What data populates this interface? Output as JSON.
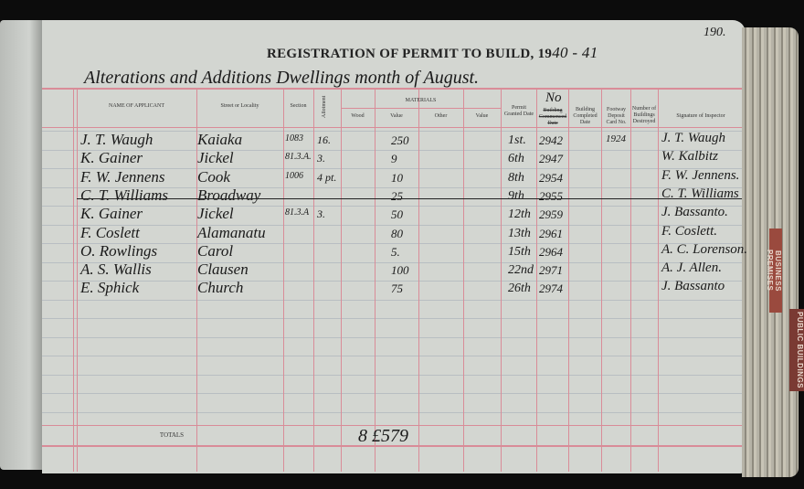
{
  "page_number": "190.",
  "title": "REGISTRATION OF PERMIT TO BUILD, 19",
  "title_year_handwritten": "40 - 41",
  "subtitle": "Alterations and Additions Dwellings month of August.",
  "headers": {
    "name": "NAME OF APPLICANT",
    "street": "Street or Locality",
    "section": "Section",
    "allotment": "Allotment",
    "materials": "MATERIALS",
    "wood": "Wood",
    "value1": "Value",
    "other": "Other",
    "value2": "Value",
    "permit_date": "Permit Granted Date",
    "no_handwritten": "No",
    "no_printed": "Building Commenced Date",
    "completed": "Building Completed Date",
    "footway": "Footway Deposit Card No.",
    "destroyed": "Number of Buildings Destroyed",
    "signature": "Signature of Inspector"
  },
  "rows": [
    {
      "name": "J. T. Waugh",
      "street": "Kaiaka",
      "section": "1083",
      "allotment": "16.",
      "value": "250",
      "date": "1st.",
      "no": "2942",
      "footway": "1924",
      "signature": "J. T. Waugh"
    },
    {
      "name": "K. Gainer",
      "street": "Jickel",
      "section": "81.3.A.",
      "allotment": "3.",
      "value": "9",
      "date": "6th",
      "no": "2947",
      "footway": "",
      "signature": "W. Kalbitz"
    },
    {
      "name": "F. W. Jennens",
      "street": "Cook",
      "section": "1006",
      "allotment": "4 pt.",
      "value": "10",
      "date": "8th",
      "no": "2954",
      "footway": "",
      "signature": "F. W. Jennens."
    },
    {
      "name": "C. T. Williams",
      "street": "Broadway",
      "section": "",
      "allotment": "",
      "value": "25",
      "date": "9th",
      "no": "2955",
      "footway": "",
      "signature": "C. T. Williams",
      "struck": true
    },
    {
      "name": "K. Gainer",
      "street": "Jickel",
      "section": "81.3.A",
      "allotment": "3.",
      "value": "50",
      "date": "12th",
      "no": "2959",
      "footway": "",
      "signature": "J. Bassanto."
    },
    {
      "name": "F. Coslett",
      "street": "Alamanatu",
      "section": "",
      "allotment": "",
      "value": "80",
      "date": "13th",
      "no": "2961",
      "footway": "",
      "signature": "F. Coslett."
    },
    {
      "name": "O. Rowlings",
      "street": "Carol",
      "section": "",
      "allotment": "",
      "value": "5.",
      "date": "15th",
      "no": "2964",
      "footway": "",
      "signature": "A. C. Lorenson."
    },
    {
      "name": "A. S. Wallis",
      "street": "Clausen",
      "section": "",
      "allotment": "",
      "value": "100",
      "date": "22nd",
      "no": "2971",
      "footway": "",
      "signature": "A. J. Allen."
    },
    {
      "name": "E. Sphick",
      "street": "Church",
      "section": "",
      "allotment": "",
      "value": "75",
      "date": "26th",
      "no": "2974",
      "footway": "",
      "signature": "J. Bassanto"
    }
  ],
  "totals_label": "TOTALS",
  "total_value": "8 £579",
  "tabs": [
    "BUSINESS PREMISES",
    "PUBLIC BUILDINGS"
  ]
}
